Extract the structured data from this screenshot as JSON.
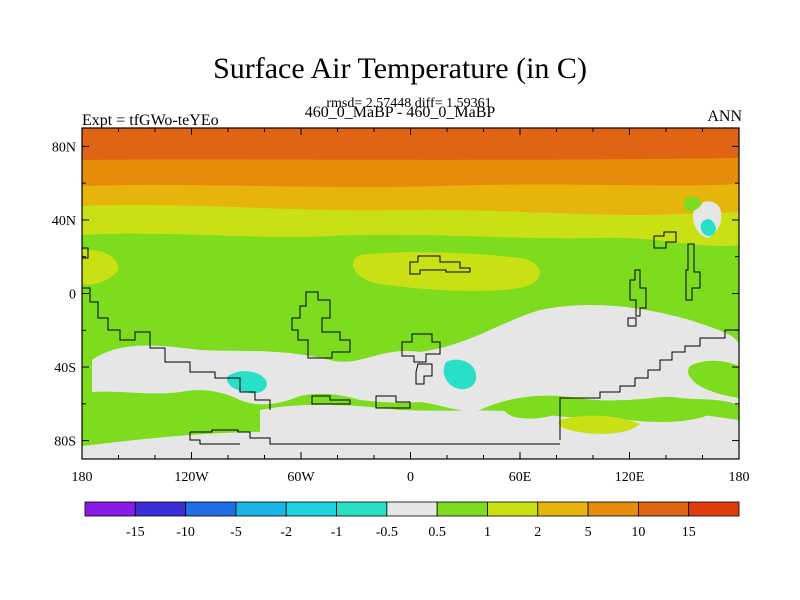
{
  "title": "Surface Air Temperature (in C)",
  "subtitle": "rmsd= 2.57448  diff= 1.59361",
  "experiment_label": "Expt = tfGWo-teYEo",
  "center_label": "460_0_MaBP - 460_0_MaBP",
  "season_label": "ANN",
  "chart_data": {
    "type": "heatmap",
    "projection": "cylindrical-equidistant",
    "xlim": [
      -180,
      180
    ],
    "ylim": [
      -90,
      90
    ],
    "x_tick_labels": [
      "180",
      "120W",
      "60W",
      "0",
      "60E",
      "120E",
      "180"
    ],
    "x_tick_values": [
      -180,
      -120,
      -60,
      0,
      60,
      120,
      180
    ],
    "y_tick_labels": [
      "80N",
      "40N",
      "0",
      "40S",
      "80S"
    ],
    "y_tick_values": [
      80,
      40,
      0,
      -40,
      -80
    ],
    "colorbar": {
      "boundary_labels": [
        "-15",
        "-10",
        "-5",
        "-2",
        "-1",
        "-0.5",
        "0.5",
        "1",
        "2",
        "5",
        "10",
        "15"
      ],
      "colors": [
        "#8a1ae6",
        "#3a2ed6",
        "#1e6ee6",
        "#1ab4e6",
        "#1ed2e0",
        "#28e0c8",
        "#e6e6e6",
        "#7ddc1e",
        "#c8e014",
        "#e6b40a",
        "#e68c0a",
        "#e06414",
        "#e03c0a"
      ]
    },
    "colors": {
      "lt_m0.5": "#28e0c8",
      "neutral": "#e6e6e6",
      "p0.5_1": "#7ddc1e",
      "p1_2": "#c8e014",
      "p2_5": "#e6b40a",
      "p5_10": "#e68c0a",
      "p10_15": "#e06414"
    }
  }
}
